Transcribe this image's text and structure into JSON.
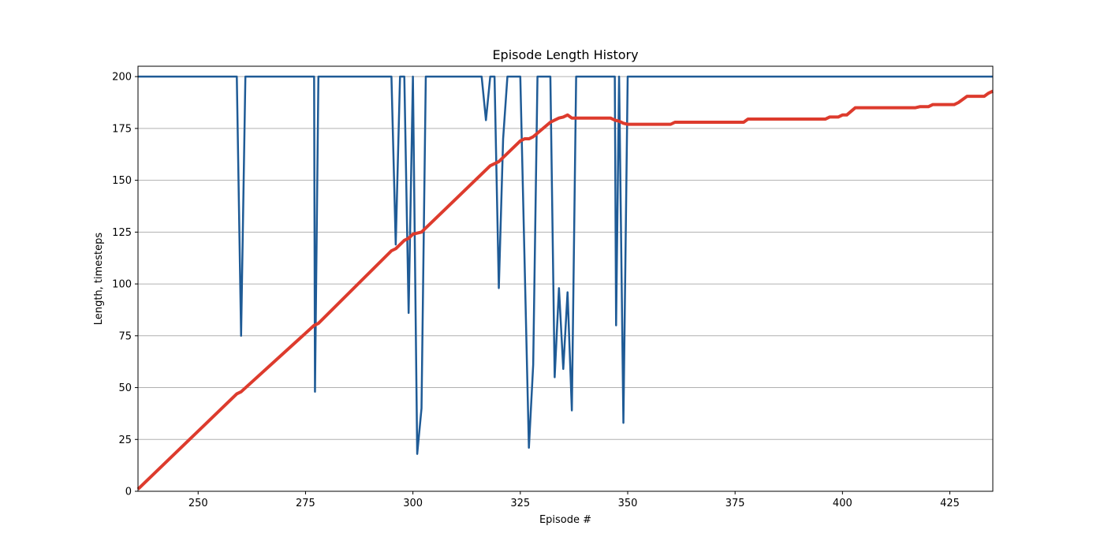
{
  "chart_data": {
    "type": "line",
    "title": "Episode Length History",
    "xlabel": "Episode #",
    "ylabel": "Length, timesteps",
    "xlim": [
      236,
      435
    ],
    "ylim": [
      0,
      205
    ],
    "xticks": [
      250,
      275,
      300,
      325,
      350,
      375,
      400,
      425
    ],
    "yticks": [
      0,
      25,
      50,
      75,
      100,
      125,
      150,
      175,
      200
    ],
    "grid": {
      "y": true,
      "x": false
    },
    "series": [
      {
        "color": "#1f5b96",
        "points": [
          [
            236,
            200
          ],
          [
            259,
            200
          ],
          [
            260,
            75
          ],
          [
            261,
            200
          ],
          [
            277,
            200
          ],
          [
            277.2,
            48
          ],
          [
            278,
            200
          ],
          [
            295,
            200
          ],
          [
            296,
            119
          ],
          [
            297,
            200
          ],
          [
            298,
            200
          ],
          [
            299,
            86
          ],
          [
            300,
            200
          ],
          [
            301,
            18
          ],
          [
            302,
            40
          ],
          [
            303,
            200
          ],
          [
            316,
            200
          ],
          [
            317,
            179
          ],
          [
            318,
            200
          ],
          [
            319,
            200
          ],
          [
            320,
            98
          ],
          [
            321,
            170
          ],
          [
            322,
            200
          ],
          [
            325,
            200
          ],
          [
            327,
            21
          ],
          [
            328,
            61
          ],
          [
            329,
            200
          ],
          [
            332,
            200
          ],
          [
            333,
            55
          ],
          [
            334,
            98
          ],
          [
            335,
            59
          ],
          [
            336,
            96
          ],
          [
            337,
            39
          ],
          [
            338,
            200
          ],
          [
            347,
            200
          ],
          [
            347.3,
            80
          ],
          [
            348,
            200
          ],
          [
            349,
            33
          ],
          [
            350,
            200
          ],
          [
            435,
            200
          ]
        ]
      },
      {
        "color": "#dd3b2d",
        "points": [
          [
            236,
            1
          ],
          [
            259,
            47
          ],
          [
            260,
            48
          ],
          [
            277,
            80
          ],
          [
            278,
            81
          ],
          [
            295,
            116
          ],
          [
            296,
            117
          ],
          [
            298,
            121
          ],
          [
            299,
            122
          ],
          [
            300,
            124
          ],
          [
            302,
            125
          ],
          [
            316,
            153
          ],
          [
            318,
            157
          ],
          [
            319,
            158
          ],
          [
            320,
            159
          ],
          [
            325,
            169
          ],
          [
            326,
            170
          ],
          [
            327,
            170
          ],
          [
            328,
            171
          ],
          [
            332,
            178
          ],
          [
            333,
            179
          ],
          [
            334,
            180
          ],
          [
            335,
            180.5
          ],
          [
            336,
            181.5
          ],
          [
            337,
            180
          ],
          [
            346,
            180
          ],
          [
            347,
            179
          ],
          [
            348,
            178.5
          ],
          [
            349,
            177.5
          ],
          [
            350,
            177
          ],
          [
            360,
            177
          ],
          [
            361,
            178
          ],
          [
            377,
            178
          ],
          [
            378,
            179.5
          ],
          [
            396,
            179.5
          ],
          [
            397,
            180.5
          ],
          [
            399,
            180.5
          ],
          [
            400,
            181.5
          ],
          [
            401,
            181.5
          ],
          [
            403,
            185
          ],
          [
            417,
            185
          ],
          [
            418,
            185.5
          ],
          [
            420,
            185.5
          ],
          [
            421,
            186.5
          ],
          [
            426,
            186.5
          ],
          [
            427,
            187.5
          ],
          [
            429,
            190.5
          ],
          [
            433,
            190.5
          ],
          [
            434,
            192
          ],
          [
            435,
            193
          ]
        ]
      }
    ]
  }
}
